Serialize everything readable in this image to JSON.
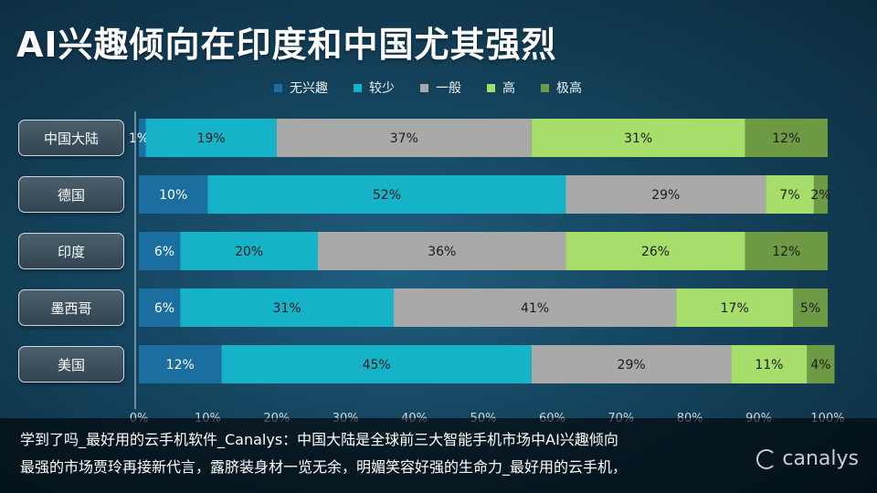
{
  "title": "AI兴趣倾向在印度和中国尤其强烈",
  "chart_data": {
    "type": "bar",
    "orientation": "horizontal",
    "stacked": true,
    "categories": [
      "中国大陆",
      "德国",
      "印度",
      "墨西哥",
      "美国"
    ],
    "series": [
      {
        "name": "无兴趣",
        "color": "#1b6fa0",
        "values": [
          1,
          10,
          6,
          6,
          12
        ]
      },
      {
        "name": "较少",
        "color": "#16b3c8",
        "values": [
          19,
          52,
          20,
          31,
          45
        ]
      },
      {
        "name": "一般",
        "color": "#a9a9a9",
        "values": [
          37,
          29,
          36,
          41,
          29
        ]
      },
      {
        "name": "高",
        "color": "#a7dd6b",
        "values": [
          31,
          7,
          26,
          17,
          11
        ]
      },
      {
        "name": "极高",
        "color": "#6e9a45",
        "values": [
          12,
          2,
          12,
          5,
          4
        ]
      }
    ],
    "xlim": [
      0,
      100
    ],
    "x_ticks": [
      "0%",
      "10%",
      "20%",
      "30%",
      "40%",
      "50%",
      "60%",
      "70%",
      "80%",
      "90%",
      "100%"
    ],
    "legend_position": "top",
    "value_suffix": "%"
  },
  "caption": {
    "line1": "学到了吗_最好用的云手机软件_Canalys：中国大陆是全球前三大智能手机市场中AI兴趣倾向",
    "line2": "最强的市场贾玲再接新代言，露脐装身材一览无余，明媚笑容好强的生命力_最好用的云手机，"
  },
  "brand": "canalys"
}
